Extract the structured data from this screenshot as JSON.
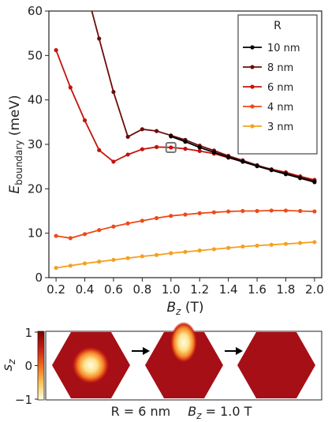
{
  "chart_data": {
    "type": "line",
    "xlabel_main": "B",
    "xlabel_sub": "z",
    "xlabel_unit": " (T)",
    "ylabel_main": "E",
    "ylabel_sub": "boundary",
    "ylabel_unit": " (meV)",
    "xlim": [
      0.15,
      2.05
    ],
    "ylim": [
      0,
      60
    ],
    "xticks": [
      "0.2",
      "0.4",
      "0.6",
      "0.8",
      "1.0",
      "1.2",
      "1.4",
      "1.6",
      "1.8",
      "2.0"
    ],
    "yticks": [
      "0",
      "10",
      "20",
      "30",
      "40",
      "50",
      "60"
    ],
    "legend": {
      "title": "R",
      "position": "top-right"
    },
    "x": [
      0.2,
      0.3,
      0.4,
      0.5,
      0.6,
      0.7,
      0.8,
      0.9,
      1.0,
      1.1,
      1.2,
      1.3,
      1.4,
      1.5,
      1.6,
      1.7,
      1.8,
      1.9,
      2.0
    ],
    "series": [
      {
        "name": "10 nm",
        "color": "#000000",
        "values": [
          null,
          null,
          null,
          null,
          null,
          null,
          null,
          null,
          31.8,
          30.6,
          29.3,
          28.2,
          27.1,
          26.1,
          25.1,
          24.2,
          23.3,
          22.4,
          21.5
        ]
      },
      {
        "name": "8 nm",
        "color": "#6b0d0d",
        "values": [
          null,
          null,
          66.0,
          53.8,
          41.8,
          31.7,
          33.4,
          33.0,
          32.0,
          31.0,
          29.7,
          28.6,
          27.4,
          26.4,
          25.3,
          24.3,
          23.5,
          22.6,
          21.8
        ]
      },
      {
        "name": "6 nm",
        "color": "#c4120d",
        "values": [
          51.2,
          42.8,
          35.4,
          28.7,
          26.1,
          27.7,
          28.9,
          29.4,
          29.3,
          29.0,
          28.5,
          27.9,
          27.0,
          26.1,
          25.2,
          24.4,
          23.7,
          22.8,
          22.0
        ]
      },
      {
        "name": "4 nm",
        "color": "#ee4a16",
        "values": [
          9.4,
          8.9,
          9.8,
          10.7,
          11.5,
          12.2,
          12.8,
          13.4,
          13.9,
          14.2,
          14.5,
          14.7,
          14.9,
          15.0,
          15.0,
          15.1,
          15.1,
          15.0,
          14.9
        ]
      },
      {
        "name": "3 nm",
        "color": "#f5a021",
        "values": [
          2.2,
          2.7,
          3.2,
          3.6,
          4.0,
          4.4,
          4.8,
          5.1,
          5.5,
          5.8,
          6.1,
          6.4,
          6.7,
          7.0,
          7.2,
          7.4,
          7.6,
          7.8,
          8.0
        ]
      }
    ],
    "highlight_point": {
      "x": 1.0,
      "y": 29.3
    }
  },
  "colorbar": {
    "label_main": "s",
    "label_sub": "z",
    "ticks": [
      "1",
      "0",
      "−1"
    ]
  },
  "caption": {
    "radius_text": "R = 6 nm",
    "field_main": "B",
    "field_sub": "z",
    "field_value": " = 1.0 T"
  }
}
